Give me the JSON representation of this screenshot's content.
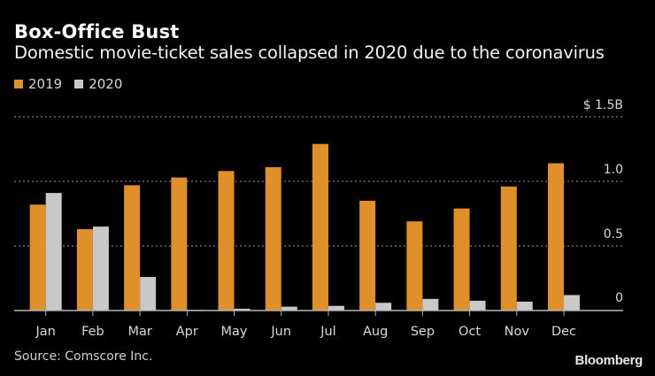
{
  "chart_data": {
    "type": "bar",
    "title": "Box-Office Bust",
    "subtitle": "Domestic movie-ticket sales collapsed in 2020 due to the coronavirus",
    "xlabel": "",
    "ylabel": "",
    "y_unit_label": "$ 1.5B",
    "ylim": [
      0,
      1.5
    ],
    "yticks": [
      0,
      0.5,
      1.0,
      1.5
    ],
    "ytick_labels": [
      "0",
      "0.5",
      "1.0",
      "$ 1.5B"
    ],
    "grid": true,
    "legend_position": "top-left",
    "categories": [
      "Jan",
      "Feb",
      "Mar",
      "Apr",
      "May",
      "Jun",
      "Jul",
      "Aug",
      "Sep",
      "Oct",
      "Nov",
      "Dec"
    ],
    "series": [
      {
        "name": "2019",
        "color": "#E0902A",
        "values": [
          0.82,
          0.63,
          0.97,
          1.03,
          1.08,
          1.11,
          1.29,
          0.85,
          0.69,
          0.79,
          0.96,
          1.14
        ]
      },
      {
        "name": "2020",
        "color": "#C8C8C8",
        "values": [
          0.91,
          0.65,
          0.26,
          0.005,
          0.014,
          0.03,
          0.036,
          0.06,
          0.09,
          0.076,
          0.069,
          0.12
        ]
      }
    ],
    "source": "Source: Comscore Inc."
  },
  "brand": "Bloomberg",
  "colors": {
    "background": "#000000",
    "text": "#FFFFFF",
    "axis": "#B4B4B4",
    "grid": "#7A7A7A"
  }
}
